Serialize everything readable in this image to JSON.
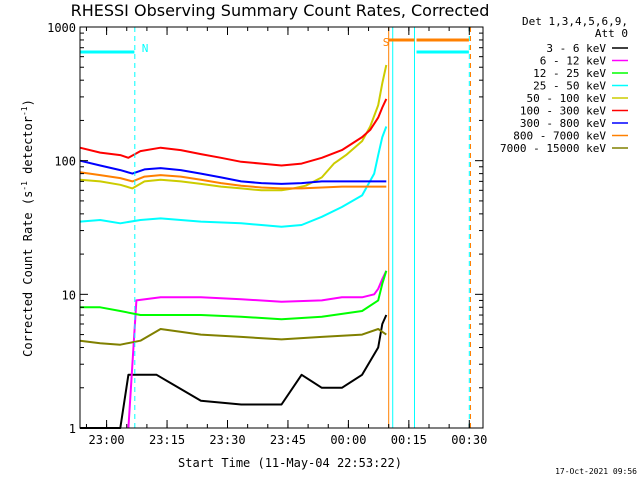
{
  "chart_data": {
    "type": "line",
    "title": "RHESSI Observing Summary Count Rates, Corrected",
    "ylabel_main": "Corrected Count Rate (s",
    "ylabel_sup1": "-1",
    "ylabel_mid": " detector",
    "ylabel_sup2": "-1",
    "ylabel_end": ")",
    "xlabel": "Start Time (11-May-04 22:53:22)",
    "y_scale": "log",
    "ylim": [
      1,
      1000
    ],
    "y_ticks": [
      "1000",
      "100",
      "10",
      "1"
    ],
    "x_range_min": [
      0,
      100
    ],
    "x_ticks": [
      {
        "label": "23:00",
        "t": 6.6
      },
      {
        "label": "23:15",
        "t": 21.6
      },
      {
        "label": "23:30",
        "t": 36.6
      },
      {
        "label": "23:45",
        "t": 51.6
      },
      {
        "label": "00:00",
        "t": 66.6
      },
      {
        "label": "00:15",
        "t": 81.6
      },
      {
        "label": "00:30",
        "t": 96.6
      }
    ],
    "header": {
      "line1": "Det 1,3,4,5,6,9,",
      "line2": "Att 0"
    },
    "flag_labels": {
      "N": "N",
      "S": "S"
    },
    "series": [
      {
        "name": "3 - 6 keV",
        "color": "#000000",
        "x": [
          0,
          10,
          12,
          19,
          20,
          30,
          40,
          50,
          55,
          60,
          65,
          70,
          74,
          75,
          76
        ],
        "y": [
          1.0,
          1.0,
          2.5,
          2.5,
          2.4,
          1.6,
          1.5,
          1.5,
          2.5,
          2.0,
          2.0,
          2.5,
          4.0,
          6.0,
          7.0
        ]
      },
      {
        "name": "6 - 12 keV",
        "color": "#ff00ff",
        "x": [
          12,
          14,
          20,
          30,
          40,
          50,
          60,
          65,
          70,
          73,
          74,
          75,
          76
        ],
        "y": [
          1.0,
          9.0,
          9.5,
          9.5,
          9.2,
          8.8,
          9.0,
          9.5,
          9.5,
          10.0,
          11.0,
          13.0,
          15.0
        ]
      },
      {
        "name": "12 - 25 keV",
        "color": "#00ff00",
        "x": [
          0,
          5,
          10,
          15,
          20,
          30,
          40,
          50,
          60,
          70,
          74,
          75,
          76
        ],
        "y": [
          8.0,
          8.0,
          7.5,
          7.0,
          7.0,
          7.0,
          6.8,
          6.5,
          6.8,
          7.5,
          9.0,
          12.0,
          15.0
        ]
      },
      {
        "name": "25 - 50 keV",
        "color": "#00ffff",
        "x": [
          0,
          5,
          10,
          15,
          20,
          30,
          40,
          45,
          50,
          55,
          60,
          65,
          70,
          73,
          74,
          75,
          76
        ],
        "y": [
          35,
          36,
          34,
          36,
          37,
          35,
          34,
          33,
          32,
          33,
          38,
          45,
          55,
          80,
          110,
          150,
          180
        ]
      },
      {
        "name": "50 - 100 keV",
        "color": "#cccc00",
        "x": [
          0,
          5,
          10,
          13,
          16,
          20,
          25,
          30,
          35,
          40,
          45,
          50,
          53,
          56,
          60,
          63,
          66,
          70,
          72,
          74,
          75,
          76
        ],
        "y": [
          72,
          70,
          66,
          62,
          70,
          72,
          70,
          67,
          64,
          62,
          60,
          60,
          62,
          65,
          75,
          95,
          110,
          140,
          180,
          260,
          380,
          520
        ]
      },
      {
        "name": "100 - 300 keV",
        "color": "#ff0000",
        "x": [
          0,
          5,
          10,
          12,
          15,
          20,
          25,
          30,
          35,
          40,
          45,
          50,
          55,
          60,
          65,
          70,
          72,
          74,
          75,
          76
        ],
        "y": [
          125,
          115,
          110,
          105,
          118,
          125,
          120,
          112,
          105,
          98,
          95,
          92,
          95,
          105,
          120,
          150,
          170,
          210,
          250,
          290
        ]
      },
      {
        "name": "300 - 800 keV",
        "color": "#0000ff",
        "x": [
          0,
          5,
          10,
          13,
          16,
          20,
          25,
          30,
          35,
          40,
          45,
          50,
          55,
          60,
          65,
          70,
          76
        ],
        "y": [
          100,
          92,
          85,
          80,
          86,
          88,
          85,
          80,
          75,
          70,
          68,
          67,
          68,
          70,
          70,
          70,
          70
        ]
      },
      {
        "name": "800 - 7000 keV",
        "color": "#ff8000",
        "x": [
          0,
          5,
          10,
          13,
          16,
          20,
          25,
          30,
          35,
          40,
          45,
          50,
          55,
          60,
          65,
          70,
          76
        ],
        "y": [
          82,
          78,
          74,
          70,
          76,
          78,
          76,
          72,
          68,
          65,
          63,
          62,
          62,
          63,
          64,
          64,
          64
        ]
      },
      {
        "name": "7000 - 15000 keV",
        "color": "#808000",
        "x": [
          0,
          5,
          10,
          15,
          20,
          30,
          40,
          50,
          60,
          70,
          74,
          76
        ],
        "y": [
          4.5,
          4.3,
          4.2,
          4.5,
          5.5,
          5.0,
          4.8,
          4.6,
          4.8,
          5.0,
          5.5,
          5.0
        ]
      }
    ],
    "flags": [
      {
        "name": "N",
        "color": "#00ffff",
        "on_level": 650,
        "segments": [
          [
            0,
            13.5
          ],
          [
            83.5,
            96.5
          ]
        ]
      },
      {
        "name": "S",
        "color": "#ff8000",
        "on_level": 800,
        "segments": [
          [
            76.5,
            83
          ],
          [
            83.5,
            96.5
          ]
        ]
      }
    ],
    "vertical_lines": [
      {
        "t": 13.6,
        "color": "#00ffff",
        "style": "dashed"
      },
      {
        "t": 76.6,
        "color": "#ff8000",
        "style": "solid"
      },
      {
        "t": 77.6,
        "color": "#00ffff",
        "style": "solid"
      },
      {
        "t": 83.0,
        "color": "#00ffff",
        "style": "solid"
      },
      {
        "t": 96.6,
        "color": "#00ffff",
        "style": "dashed"
      },
      {
        "t": 96.9,
        "color": "#ff8000",
        "style": "dashed"
      }
    ]
  },
  "footer": {
    "timestamp": "17-Oct-2021 09:56"
  }
}
